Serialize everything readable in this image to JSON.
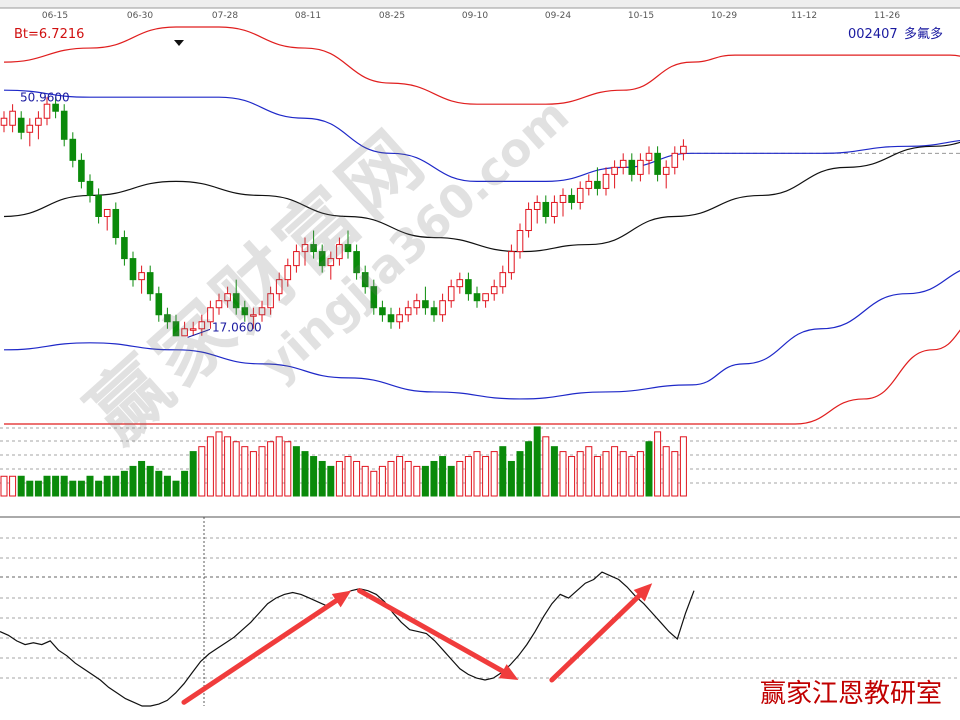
{
  "header": {
    "bt_label": "Bt=6.7216",
    "stock_code": "002407",
    "stock_name": "多氟多"
  },
  "watermark": {
    "chinese": "赢家财富网",
    "domain": "yingjia360.com"
  },
  "credit": "赢家江恩教研室",
  "colors": {
    "up": "#e0141e",
    "down": "#0a8a0a",
    "outer_band": "#e01e1e",
    "inner_band": "#1e28c8",
    "middle_line": "#111111",
    "arrow": "#f03c3c",
    "grid": "#888888",
    "label_red": "#d01010",
    "label_blue": "#1a1aa0"
  },
  "chart_data": {
    "type": "candlestick",
    "x_ticks": [
      "06-15",
      "06-30",
      "07-28",
      "08-11",
      "08-25",
      "09-10",
      "09-24",
      "10-15",
      "10-29",
      "11-12",
      "11-26"
    ],
    "price_annotations": [
      {
        "text": "50.9600",
        "value": 50.96
      },
      {
        "text": "17.0600",
        "value": 17.06
      }
    ],
    "price_range": [
      5,
      62
    ],
    "candles": [
      [
        47,
        49,
        46,
        48
      ],
      [
        47,
        50,
        46,
        49
      ],
      [
        48,
        49,
        45,
        46
      ],
      [
        46,
        48,
        44,
        47
      ],
      [
        47,
        49,
        45,
        48
      ],
      [
        48,
        51,
        47,
        50
      ],
      [
        50,
        51,
        48,
        49
      ],
      [
        49,
        50,
        44,
        45
      ],
      [
        45,
        46,
        41,
        42
      ],
      [
        42,
        43,
        38,
        39
      ],
      [
        39,
        40,
        36,
        37
      ],
      [
        37,
        38,
        33,
        34
      ],
      [
        34,
        35,
        32,
        35
      ],
      [
        35,
        36,
        30,
        31
      ],
      [
        31,
        32,
        27,
        28
      ],
      [
        28,
        29,
        24,
        25
      ],
      [
        25,
        27,
        23,
        26
      ],
      [
        26,
        27,
        22,
        23
      ],
      [
        23,
        24,
        19,
        20
      ],
      [
        20,
        21,
        18,
        19
      ],
      [
        19,
        20,
        17,
        17
      ],
      [
        17,
        19,
        17,
        18
      ],
      [
        18,
        19,
        17,
        18
      ],
      [
        18,
        20,
        17,
        19
      ],
      [
        19,
        22,
        18,
        21
      ],
      [
        21,
        23,
        20,
        22
      ],
      [
        22,
        24,
        21,
        23
      ],
      [
        23,
        25,
        20,
        21
      ],
      [
        21,
        22,
        19,
        20
      ],
      [
        20,
        21,
        18,
        20
      ],
      [
        20,
        22,
        19,
        21
      ],
      [
        21,
        24,
        20,
        23
      ],
      [
        23,
        26,
        22,
        25
      ],
      [
        25,
        28,
        24,
        27
      ],
      [
        27,
        30,
        26,
        29
      ],
      [
        29,
        31,
        27,
        30
      ],
      [
        30,
        32,
        28,
        29
      ],
      [
        29,
        30,
        26,
        27
      ],
      [
        27,
        29,
        25,
        28
      ],
      [
        28,
        31,
        27,
        30
      ],
      [
        30,
        32,
        28,
        29
      ],
      [
        29,
        30,
        25,
        26
      ],
      [
        26,
        27,
        23,
        24
      ],
      [
        24,
        25,
        20,
        21
      ],
      [
        21,
        22,
        19,
        20
      ],
      [
        20,
        21,
        18,
        19
      ],
      [
        19,
        21,
        18,
        20
      ],
      [
        20,
        22,
        19,
        21
      ],
      [
        21,
        23,
        20,
        22
      ],
      [
        22,
        24,
        20,
        21
      ],
      [
        21,
        22,
        19,
        20
      ],
      [
        20,
        23,
        19,
        22
      ],
      [
        22,
        25,
        21,
        24
      ],
      [
        24,
        26,
        23,
        25
      ],
      [
        25,
        26,
        22,
        23
      ],
      [
        23,
        24,
        21,
        22
      ],
      [
        22,
        23,
        21,
        23
      ],
      [
        23,
        25,
        22,
        24
      ],
      [
        24,
        27,
        23,
        26
      ],
      [
        26,
        30,
        25,
        29
      ],
      [
        29,
        33,
        28,
        32
      ],
      [
        32,
        36,
        31,
        35
      ],
      [
        35,
        37,
        33,
        36
      ],
      [
        36,
        37,
        33,
        34
      ],
      [
        34,
        37,
        33,
        36
      ],
      [
        36,
        38,
        34,
        37
      ],
      [
        37,
        38,
        35,
        36
      ],
      [
        36,
        39,
        35,
        38
      ],
      [
        38,
        40,
        37,
        39
      ],
      [
        39,
        41,
        37,
        38
      ],
      [
        38,
        41,
        37,
        40
      ],
      [
        40,
        42,
        38,
        41
      ],
      [
        41,
        43,
        40,
        42
      ],
      [
        42,
        43,
        39,
        40
      ],
      [
        40,
        43,
        39,
        42
      ],
      [
        42,
        44,
        40,
        43
      ],
      [
        43,
        44,
        39,
        40
      ],
      [
        40,
        42,
        38,
        41
      ],
      [
        41,
        44,
        40,
        43
      ],
      [
        43,
        45,
        42,
        44
      ]
    ],
    "bands": {
      "outer_upper": [
        [
          0,
          56
        ],
        [
          10,
          58
        ],
        [
          20,
          61
        ],
        [
          25,
          61
        ],
        [
          35,
          58
        ],
        [
          45,
          53
        ],
        [
          55,
          50
        ],
        [
          63,
          50
        ],
        [
          72,
          52
        ],
        [
          80,
          56
        ],
        [
          85,
          57
        ],
        [
          100,
          57
        ],
        [
          110,
          57
        ],
        [
          114,
          56
        ]
      ],
      "inner_upper": [
        [
          0,
          52
        ],
        [
          10,
          51
        ],
        [
          20,
          51
        ],
        [
          25,
          51
        ],
        [
          35,
          48
        ],
        [
          45,
          43
        ],
        [
          55,
          39
        ],
        [
          63,
          39
        ],
        [
          72,
          41
        ],
        [
          80,
          43
        ],
        [
          85,
          43
        ],
        [
          95,
          43
        ],
        [
          105,
          44
        ],
        [
          114,
          45
        ]
      ],
      "middle": [
        [
          0,
          34
        ],
        [
          10,
          37
        ],
        [
          20,
          39
        ],
        [
          30,
          37
        ],
        [
          40,
          34
        ],
        [
          50,
          31
        ],
        [
          60,
          29
        ],
        [
          68,
          30
        ],
        [
          78,
          34
        ],
        [
          88,
          37
        ],
        [
          98,
          41
        ],
        [
          108,
          44
        ],
        [
          114,
          45
        ]
      ],
      "inner_lower": [
        [
          0,
          15
        ],
        [
          10,
          16
        ],
        [
          20,
          15
        ],
        [
          30,
          13
        ],
        [
          40,
          11
        ],
        [
          50,
          9
        ],
        [
          60,
          8
        ],
        [
          70,
          9
        ],
        [
          80,
          10
        ],
        [
          86,
          13
        ],
        [
          95,
          18
        ],
        [
          105,
          23
        ],
        [
          114,
          27
        ]
      ],
      "outer_lower": [
        [
          0,
          2
        ],
        [
          10,
          1
        ],
        [
          20,
          -1
        ],
        [
          30,
          -4
        ],
        [
          40,
          -7
        ],
        [
          50,
          -8
        ],
        [
          60,
          -8
        ],
        [
          70,
          -8
        ],
        [
          80,
          -8
        ],
        [
          84,
          -8
        ],
        [
          92,
          0
        ],
        [
          100,
          8
        ],
        [
          108,
          15
        ],
        [
          114,
          20
        ]
      ]
    },
    "volume": [
      4,
      4,
      4,
      3,
      3,
      4,
      4,
      4,
      3,
      3,
      4,
      3,
      4,
      4,
      5,
      6,
      7,
      6,
      5,
      4,
      3,
      5,
      9,
      10,
      12,
      13,
      12,
      11,
      10,
      9,
      10,
      11,
      12,
      11,
      10,
      9,
      8,
      7,
      6,
      7,
      8,
      7,
      6,
      5,
      6,
      7,
      8,
      7,
      6,
      6,
      7,
      8,
      6,
      7,
      8,
      9,
      8,
      9,
      10,
      7,
      9,
      11,
      14,
      12,
      10,
      9,
      8,
      9,
      10,
      8,
      9,
      10,
      9,
      8,
      9,
      11,
      13,
      10,
      9,
      12
    ],
    "volume_colors": "rrgggggggggggggggggggggrrrrrrrrrrrgggggrrrrrrrrrrggggrrrrrgggggrgrrrrrrrrrrgrrrr",
    "oscillator": [
      40,
      38,
      35,
      33,
      34,
      33,
      35,
      30,
      27,
      23,
      20,
      17,
      14,
      10,
      7,
      4,
      2,
      0,
      0,
      1,
      3,
      7,
      12,
      18,
      24,
      28,
      31,
      34,
      37,
      41,
      45,
      50,
      55,
      58,
      60,
      61,
      60,
      58,
      56,
      54,
      57,
      60,
      62,
      63,
      62,
      60,
      56,
      50,
      45,
      41,
      40,
      39,
      35,
      30,
      25,
      20,
      17,
      15,
      14,
      15,
      18,
      22,
      27,
      33,
      40,
      48,
      55,
      60,
      58,
      62,
      66,
      68,
      72,
      70,
      68,
      64,
      59,
      55,
      50,
      45,
      40,
      36,
      50,
      62
    ],
    "oscillator_range": [
      0,
      100
    ],
    "arrows": [
      {
        "from": [
          22,
          2
        ],
        "to": [
          42,
          62
        ]
      },
      {
        "from": [
          43,
          62
        ],
        "to": [
          62,
          14
        ]
      },
      {
        "from": [
          66,
          14
        ],
        "to": [
          78,
          66
        ]
      }
    ]
  }
}
